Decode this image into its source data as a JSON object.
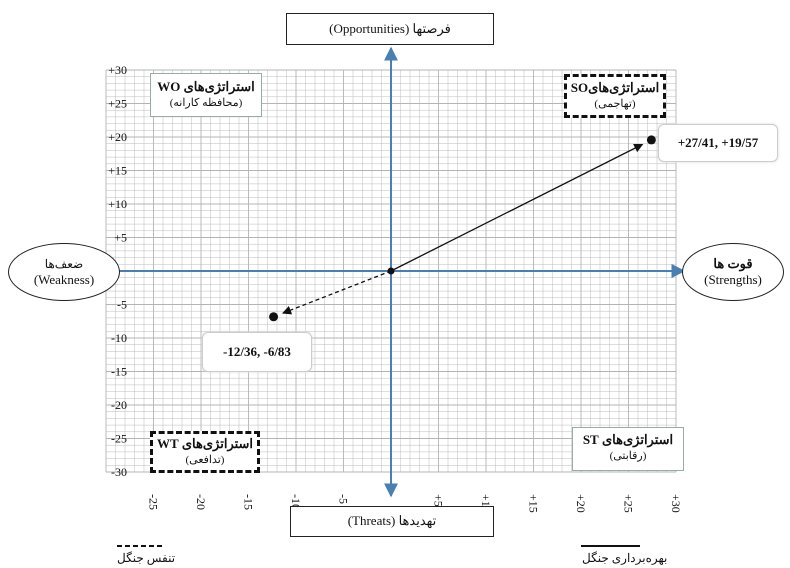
{
  "chart_data": {
    "type": "scatter",
    "xlim": [
      -30,
      30
    ],
    "ylim": [
      -30,
      30
    ],
    "grid": true,
    "x_ticks": [
      -25,
      -20,
      -15,
      -10,
      -5,
      5,
      10,
      15,
      20,
      25,
      30
    ],
    "x_tick_labels": [
      "-25",
      "-20",
      "-15",
      "-10",
      "-5",
      "+5",
      "+10",
      "+15",
      "+20",
      "+25",
      "+30"
    ],
    "y_ticks": [
      30,
      25,
      20,
      15,
      10,
      5,
      -5,
      -10,
      -15,
      -20,
      -25,
      -30
    ],
    "y_tick_labels": [
      "+30",
      "+25",
      "+20",
      "+15",
      "+10",
      "+5",
      "-5",
      "-10",
      "-15",
      "-20",
      "-25",
      "-30"
    ],
    "points": [
      {
        "x": 27.41,
        "y": 19.57,
        "label": "+27/41, +19/57"
      },
      {
        "x": -12.36,
        "y": -6.83,
        "label": "-12/36, -6/83"
      }
    ],
    "vectors": [
      {
        "from": [
          0,
          0
        ],
        "to": [
          27.41,
          19.57
        ],
        "style": "solid"
      },
      {
        "from": [
          0,
          0
        ],
        "to": [
          -12.36,
          -6.83
        ],
        "style": "dashed"
      }
    ]
  },
  "axes": {
    "top": "فرصتها (Opportunities)",
    "bottom": "تهدیدها (Threats)",
    "left_line1": "ضعف‌ها",
    "left_line2": "(Weakness)",
    "right_line1": "قوت ها",
    "right_line2": "(Strengths)"
  },
  "quadrants": {
    "wo_title": "استراتژی‌های  WO",
    "wo_sub": "(محافظه کارانه)",
    "so_title": "استراتژی‌هایSO",
    "so_sub": "(تهاجمی)",
    "wt_title": "استراتژی‌های WT",
    "wt_sub": "(تدافعی)",
    "st_title": "استراتژی‌های ST",
    "st_sub": "(رقابتی)"
  },
  "legend": {
    "dashed_label": "تنفس جنگل",
    "solid_label": "بهره‌برداری جنگل"
  },
  "colors": {
    "axis": "#4a7fb5",
    "grid": "#b4b4b4",
    "vector": "#111111"
  }
}
